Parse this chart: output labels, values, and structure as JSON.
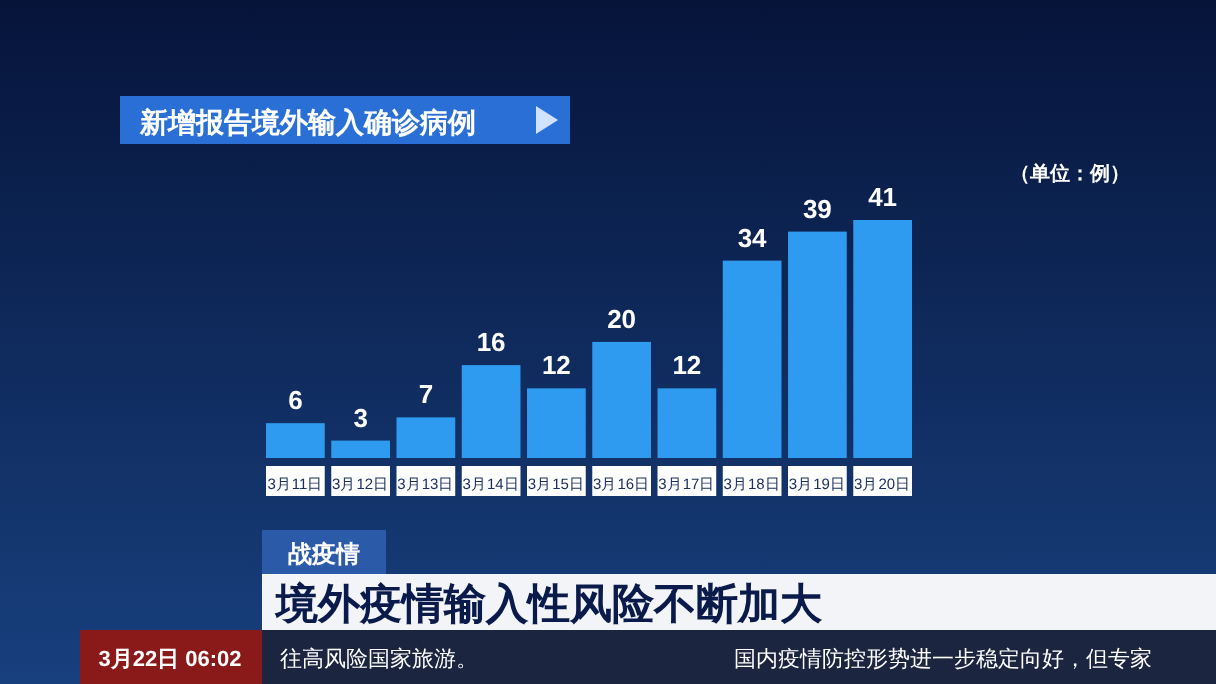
{
  "chart_data": {
    "type": "bar",
    "title": "新增报告境外输入确诊病例",
    "categories": [
      "3月11日",
      "3月12日",
      "3月13日",
      "3月14日",
      "3月15日",
      "3月16日",
      "3月17日",
      "3月18日",
      "3月19日",
      "3月20日"
    ],
    "values": [
      6,
      3,
      7,
      16,
      12,
      20,
      12,
      34,
      39,
      41
    ],
    "color": "#2f9bf0",
    "data_labels": true,
    "annotations": [
      "（单位：例）",
      "战疫情",
      "境外疫情输入性风险不断加大",
      "3月22日 06:02",
      "往高风险国家旅游。",
      "国内疫情防控形势进一步稳定向好，但专家"
    ]
  }
}
